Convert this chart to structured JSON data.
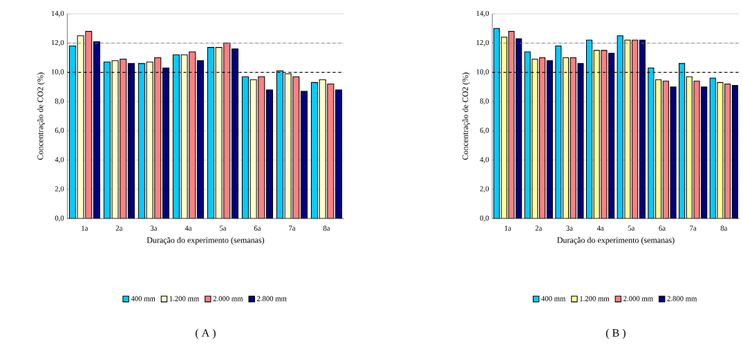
{
  "chart_data": [
    {
      "type": "bar",
      "title": "( A )",
      "xlabel": "Duração do experimento (semanas)",
      "ylabel": "Concentração de CO2 (%)",
      "categories": [
        "1a",
        "2a",
        "3a",
        "4a",
        "5a",
        "6a",
        "7a",
        "8a"
      ],
      "series": [
        {
          "name": "400 mm",
          "color": "#00ccff",
          "values": [
            11.8,
            10.7,
            10.6,
            11.2,
            11.7,
            9.7,
            10.1,
            9.3
          ]
        },
        {
          "name": "1.200 mm",
          "color": "#ffffcc",
          "values": [
            12.5,
            10.8,
            10.7,
            11.2,
            11.7,
            9.5,
            9.9,
            9.5
          ]
        },
        {
          "name": "2.000 mm",
          "color": "#ff8080",
          "values": [
            12.8,
            10.9,
            11.0,
            11.4,
            12.0,
            9.7,
            9.7,
            9.2
          ]
        },
        {
          "name": "2.800 mm",
          "color": "#000080",
          "values": [
            12.1,
            10.6,
            10.3,
            10.8,
            11.6,
            8.8,
            8.7,
            8.8
          ]
        }
      ],
      "ylim": [
        0,
        14
      ],
      "yticks": [
        {
          "value": 0,
          "label": "0,0"
        },
        {
          "value": 2,
          "label": "2,0"
        },
        {
          "value": 4,
          "label": "4,0"
        },
        {
          "value": 6,
          "label": "6,0"
        },
        {
          "value": 8,
          "label": "8,0"
        },
        {
          "value": 10,
          "label": "10,0"
        },
        {
          "value": 12,
          "label": "12,0"
        },
        {
          "value": 14,
          "label": "14,0"
        }
      ],
      "ref_lines": [
        {
          "axis": "y",
          "value": 12,
          "line_style": "dashed",
          "color": "#808080"
        },
        {
          "axis": "y",
          "value": 10,
          "line_style": "dashed",
          "color": "#000000"
        }
      ],
      "grid": "y",
      "legend": "bottom"
    },
    {
      "type": "bar",
      "title": "( B )",
      "xlabel": "Duração do experimento (semanas)",
      "ylabel": "Concentração de CO2 (%)",
      "categories": [
        "1a",
        "2a",
        "3a",
        "4a",
        "5a",
        "6a",
        "7a",
        "8a"
      ],
      "series": [
        {
          "name": "400 mm",
          "color": "#00ccff",
          "values": [
            13.0,
            11.4,
            11.8,
            12.2,
            12.5,
            10.3,
            10.6,
            9.6
          ]
        },
        {
          "name": "1.200 mm",
          "color": "#ffff99",
          "values": [
            12.4,
            10.9,
            11.0,
            11.5,
            12.2,
            9.5,
            9.7,
            9.3
          ]
        },
        {
          "name": "2.000 mm",
          "color": "#ff8080",
          "values": [
            12.8,
            11.0,
            11.0,
            11.5,
            12.2,
            9.4,
            9.4,
            9.2
          ]
        },
        {
          "name": "2.800 mm",
          "color": "#000080",
          "values": [
            12.3,
            10.8,
            10.6,
            11.3,
            12.2,
            9.0,
            9.0,
            9.1
          ]
        }
      ],
      "ylim": [
        0,
        14
      ],
      "yticks": [
        {
          "value": 0,
          "label": "0,0"
        },
        {
          "value": 2,
          "label": "2,0"
        },
        {
          "value": 4,
          "label": "4,0"
        },
        {
          "value": 6,
          "label": "6,0"
        },
        {
          "value": 8,
          "label": "8,0"
        },
        {
          "value": 10,
          "label": "10,0"
        },
        {
          "value": 12,
          "label": "12,0"
        },
        {
          "value": 14,
          "label": "14,0"
        }
      ],
      "ref_lines": [
        {
          "axis": "y",
          "value": 12,
          "line_style": "dashed",
          "color": "#808080"
        },
        {
          "axis": "y",
          "value": 10,
          "line_style": "dashed",
          "color": "#000000"
        }
      ],
      "grid": "y",
      "legend": "bottom"
    }
  ]
}
